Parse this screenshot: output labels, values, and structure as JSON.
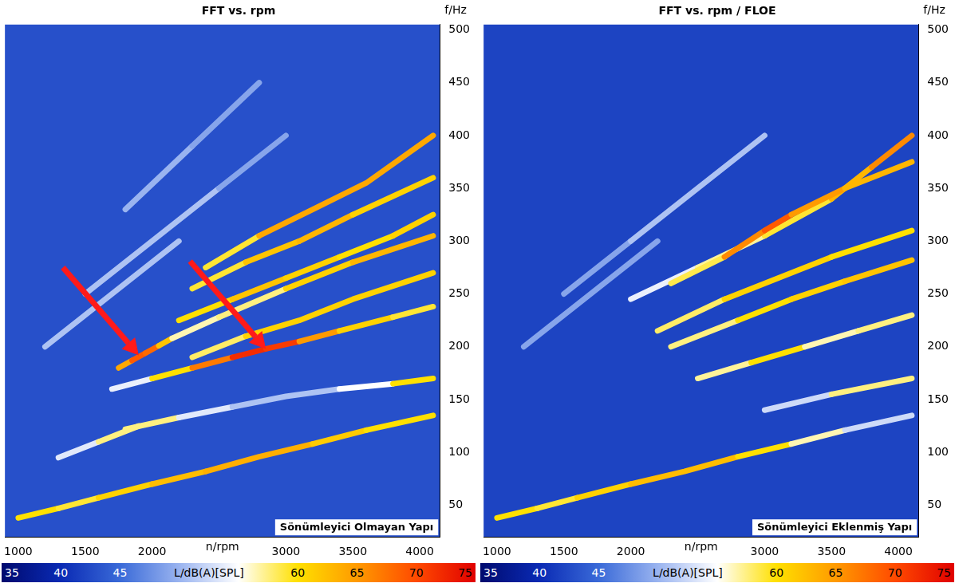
{
  "chart_data": [
    {
      "type": "scatter",
      "title": "FFT vs. rpm",
      "x_label": "n/rpm",
      "y_label": "f/Hz",
      "xlim": [
        900,
        4150
      ],
      "xticks": [
        1000,
        1500,
        2000,
        3000,
        3500,
        4000
      ],
      "ylim": [
        20,
        505
      ],
      "yticks": [
        50,
        100,
        150,
        200,
        250,
        300,
        350,
        400,
        450,
        500
      ],
      "grid": false,
      "legend": "none",
      "annotation": "Sönümleyici Olmayan Yapı",
      "arrows": [
        {
          "x": 1900,
          "y": 192
        },
        {
          "x": 2850,
          "y": 198
        }
      ],
      "floor_level": 43,
      "colorbar": {
        "label": "L/dB(A)[SPL]",
        "range": [
          35,
          75
        ],
        "ticks": [
          35,
          40,
          45,
          60,
          65,
          70,
          75
        ]
      },
      "series": [
        {
          "x": [
            1000,
            1300,
            1600,
            2000,
            2400,
            2800,
            3200,
            3600,
            4100
          ],
          "values": [
            38,
            47,
            57,
            70,
            82,
            96,
            108,
            121,
            135
          ],
          "levels": [
            62,
            58,
            60,
            62,
            63,
            64,
            63,
            60,
            60
          ]
        },
        {
          "x": [
            1800,
            2200,
            2600,
            3000,
            3400,
            3800,
            4100
          ],
          "values": [
            122,
            133,
            143,
            153,
            160,
            165,
            170
          ],
          "levels": [
            60,
            55,
            52,
            50,
            52,
            58,
            62
          ]
        },
        {
          "x": [
            1700,
            2000,
            2300,
            2600,
            2850,
            3100,
            3400,
            3800,
            4100
          ],
          "values": [
            160,
            170,
            180,
            190,
            198,
            205,
            215,
            228,
            238
          ],
          "levels": [
            52,
            56,
            64,
            70,
            74,
            68,
            62,
            60,
            58
          ]
        },
        {
          "x": [
            1750,
            1850,
            1950,
            2050,
            2150,
            2500,
            3000,
            3500,
            4100
          ],
          "values": [
            180,
            187,
            194,
            201,
            208,
            228,
            255,
            280,
            305
          ],
          "levels": [
            60,
            68,
            70,
            66,
            58,
            55,
            60,
            62,
            64
          ]
        },
        {
          "x": [
            2300,
            2700,
            3100,
            3500,
            4100
          ],
          "values": [
            190,
            210,
            225,
            245,
            270
          ],
          "levels": [
            56,
            60,
            62,
            60,
            62
          ]
        },
        {
          "x": [
            2200,
            2600,
            3000,
            3400,
            3800,
            4100
          ],
          "values": [
            225,
            245,
            265,
            285,
            305,
            325
          ],
          "levels": [
            58,
            62,
            62,
            60,
            60,
            62
          ]
        },
        {
          "x": [
            2300,
            2700,
            3100,
            3500,
            4100
          ],
          "values": [
            255,
            280,
            300,
            325,
            360
          ],
          "levels": [
            58,
            60,
            64,
            62,
            60
          ]
        },
        {
          "x": [
            2400,
            2800,
            3200,
            3600,
            4100
          ],
          "values": [
            275,
            305,
            330,
            355,
            400
          ],
          "levels": [
            56,
            62,
            66,
            62,
            66
          ]
        },
        {
          "x": [
            1500,
            2000,
            2500,
            3000
          ],
          "values": [
            250,
            300,
            350,
            400
          ],
          "levels": [
            50,
            52,
            50,
            48
          ]
        },
        {
          "x": [
            1800,
            2300,
            2800
          ],
          "values": [
            330,
            390,
            450
          ],
          "levels": [
            50,
            50,
            48
          ]
        },
        {
          "x": [
            1200,
            1700,
            2200
          ],
          "values": [
            200,
            250,
            300
          ],
          "levels": [
            50,
            52,
            50
          ]
        },
        {
          "x": [
            1300,
            1600,
            1900
          ],
          "values": [
            95,
            110,
            125
          ],
          "levels": [
            52,
            55,
            60
          ]
        }
      ]
    },
    {
      "type": "scatter",
      "title": "FFT vs. rpm / FLOE",
      "x_label": "n/rpm",
      "y_label": "f/Hz",
      "xlim": [
        900,
        4150
      ],
      "xticks": [
        1000,
        1500,
        2000,
        3000,
        3500,
        4000
      ],
      "ylim": [
        20,
        505
      ],
      "yticks": [
        50,
        100,
        150,
        200,
        250,
        300,
        350,
        400,
        450,
        500
      ],
      "grid": false,
      "legend": "none",
      "annotation": "Sönümleyici Eklenmiş Yapı",
      "arrows": [],
      "floor_level": 42,
      "colorbar": {
        "label": "L/dB(A)[SPL]",
        "range": [
          35,
          75
        ],
        "ticks": [
          35,
          40,
          45,
          60,
          65,
          70,
          75
        ]
      },
      "series": [
        {
          "x": [
            1000,
            1300,
            1600,
            2000,
            2400,
            2800,
            3200,
            3600,
            4100
          ],
          "values": [
            38,
            47,
            57,
            70,
            82,
            96,
            108,
            121,
            135
          ],
          "levels": [
            62,
            58,
            60,
            62,
            63,
            62,
            58,
            55,
            50
          ]
        },
        {
          "x": [
            3000,
            3500,
            4100
          ],
          "values": [
            140,
            155,
            170
          ],
          "levels": [
            50,
            55,
            60
          ]
        },
        {
          "x": [
            2500,
            2900,
            3300,
            3700,
            4100
          ],
          "values": [
            170,
            185,
            200,
            215,
            230
          ],
          "levels": [
            52,
            62,
            58,
            55,
            60
          ]
        },
        {
          "x": [
            2300,
            2800,
            3200,
            3600,
            4100
          ],
          "values": [
            200,
            225,
            245,
            262,
            282
          ],
          "levels": [
            55,
            60,
            60,
            62,
            62
          ]
        },
        {
          "x": [
            2200,
            2700,
            3100,
            3500,
            4100
          ],
          "values": [
            215,
            245,
            265,
            285,
            310
          ],
          "levels": [
            56,
            60,
            62,
            60,
            60
          ]
        },
        {
          "x": [
            2300,
            2700,
            3000,
            3200,
            3600,
            4100
          ],
          "values": [
            260,
            285,
            310,
            325,
            350,
            375
          ],
          "levels": [
            55,
            62,
            70,
            68,
            62,
            64
          ]
        },
        {
          "x": [
            2000,
            2500,
            3000,
            3500,
            3800,
            4100
          ],
          "values": [
            245,
            275,
            305,
            340,
            370,
            400
          ],
          "levels": [
            52,
            56,
            58,
            60,
            66,
            66
          ]
        },
        {
          "x": [
            1500,
            2000,
            2500,
            3000
          ],
          "values": [
            250,
            300,
            350,
            400
          ],
          "levels": [
            48,
            50,
            52,
            50
          ]
        },
        {
          "x": [
            1200,
            1700,
            2200
          ],
          "values": [
            200,
            250,
            300
          ],
          "levels": [
            48,
            50,
            48
          ]
        }
      ]
    }
  ]
}
